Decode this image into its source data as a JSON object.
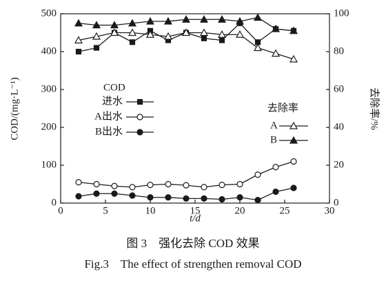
{
  "chart_data": {
    "type": "line",
    "x_label": "t/d",
    "y_label": "COD/(mg·L⁻¹)",
    "y2_label": "去除率/%",
    "legend_titles": [
      "COD",
      "去除率"
    ],
    "x": [
      2,
      4,
      6,
      8,
      10,
      12,
      14,
      16,
      18,
      20,
      22,
      24,
      26
    ],
    "series": [
      {
        "name": "进水",
        "color": "#1a1a1a",
        "marker": "square",
        "values": [
          400,
          410,
          450,
          425,
          455,
          430,
          450,
          435,
          430,
          475,
          425,
          460,
          455
        ]
      },
      {
        "name": "A出水",
        "color": "#1a1a1a",
        "marker": "circle-open",
        "values": [
          55,
          50,
          45,
          42,
          48,
          50,
          47,
          42,
          48,
          50,
          75,
          95,
          110
        ]
      },
      {
        "name": "B出水",
        "color": "#1a1a1a",
        "marker": "circle",
        "values": [
          18,
          25,
          25,
          20,
          15,
          15,
          12,
          12,
          10,
          15,
          8,
          30,
          40
        ]
      },
      {
        "name": "A",
        "color": "#1a1a1a",
        "marker": "triangle-open",
        "axis": "y2",
        "values": [
          86,
          88,
          90,
          90,
          89,
          88,
          90,
          90,
          89,
          89,
          82,
          79,
          76
        ]
      },
      {
        "name": "B",
        "color": "#1a1a1a",
        "marker": "triangle",
        "axis": "y2",
        "values": [
          95,
          94,
          94,
          95,
          96,
          96,
          97,
          97,
          97,
          96,
          98,
          92,
          91
        ]
      }
    ],
    "xlim": [
      0,
      30
    ],
    "xticks": [
      0,
      5,
      10,
      15,
      20,
      25,
      30
    ],
    "ylim": [
      0,
      500
    ],
    "yticks": [
      0,
      100,
      200,
      300,
      400,
      500
    ],
    "y2lim": [
      0,
      100
    ],
    "y2ticks": [
      0,
      20,
      40,
      60,
      80,
      100
    ],
    "grid": false
  },
  "caption": {
    "cn": "图 3　强化去除 COD 效果",
    "en": "Fig.3　The effect of strengthen removal COD"
  }
}
